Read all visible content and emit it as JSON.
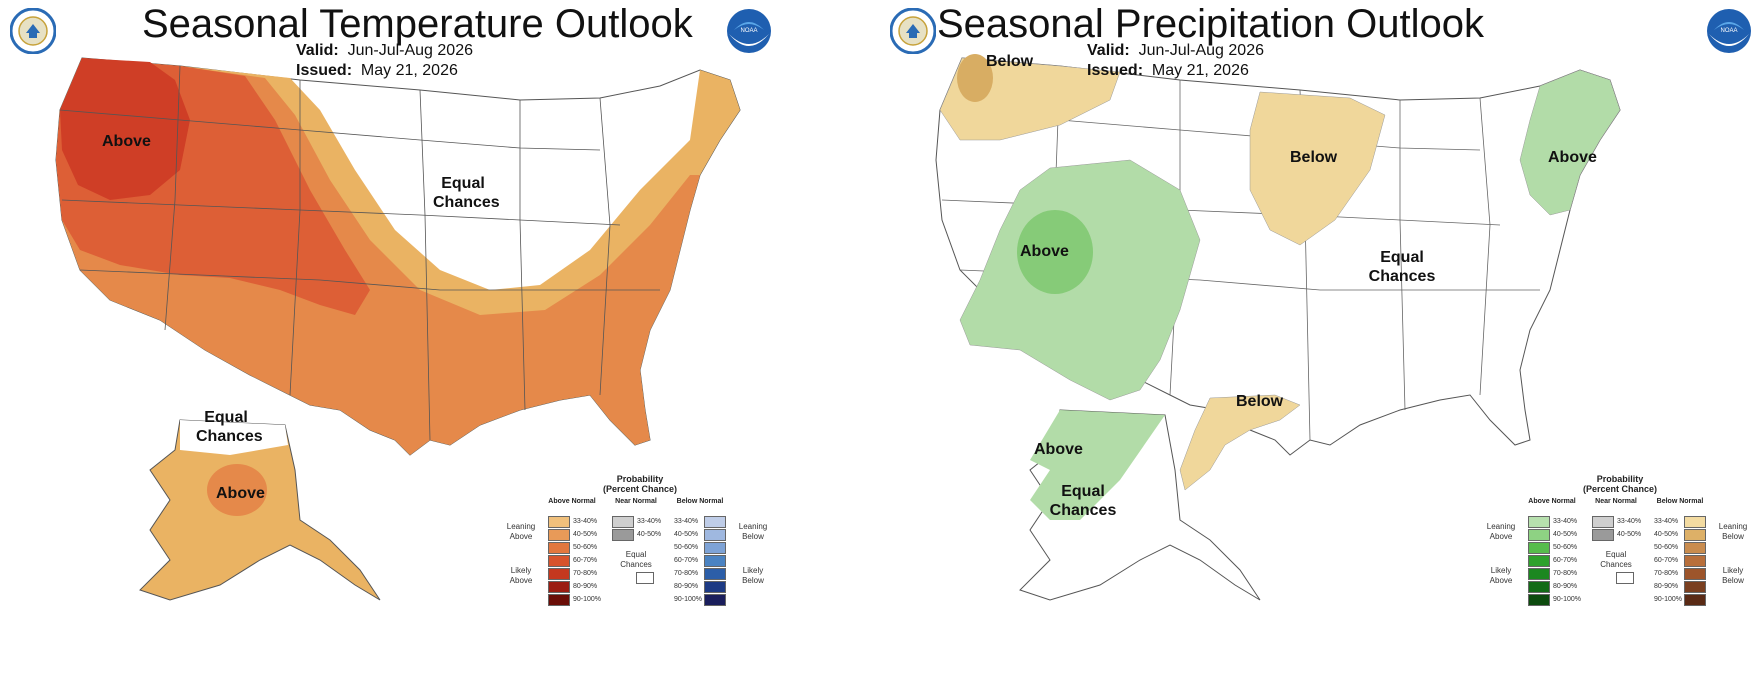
{
  "temperature": {
    "title": "Seasonal Temperature Outlook",
    "valid_label": "Valid:",
    "valid_value": "Jun-Jul-Aug 2026",
    "issued_label": "Issued:",
    "issued_value": "May 21, 2026",
    "regions": {
      "above_west": "Above",
      "equal_midwest_1": "Equal",
      "equal_midwest_2": "Chances",
      "equal_alaska_1": "Equal",
      "equal_alaska_2": "Chances",
      "above_alaska": "Above"
    },
    "colors": {
      "c33_40": "#eab363",
      "c40_50": "#e5894a",
      "c50_60": "#dd5f36",
      "c60_70": "#cf3e26",
      "c70_80": "#b0281c",
      "c80_90": "#8c1710",
      "c90_100": "#5e0b06"
    },
    "legend": {
      "title_1": "Probability",
      "title_2": "(Percent Chance)",
      "col_left": "Above Normal",
      "col_mid": "Near Normal",
      "col_right": "Below Normal",
      "side_left_1": "Leaning Above",
      "side_left_2": "Likely Above",
      "side_right_1": "Leaning Below",
      "side_right_2": "Likely Below",
      "equal": "Equal Chances",
      "left_colors": [
        "#f0c07c",
        "#e89a58",
        "#e2773e",
        "#d7532c",
        "#c5381f",
        "#9b1d12",
        "#6a0d07"
      ],
      "right_colors": [
        "#bfcde8",
        "#9fb8e0",
        "#7ea3d6",
        "#4b83c2",
        "#2c5ea8",
        "#1d3a84",
        "#1a1e5c"
      ]
    }
  },
  "precipitation": {
    "title": "Seasonal Precipitation Outlook",
    "valid_label": "Valid:",
    "valid_value": "Jun-Jul-Aug 2026",
    "issued_label": "Issued:",
    "issued_value": "May 21, 2026",
    "regions": {
      "below_nw": "Below",
      "below_midwest": "Below",
      "above_ne": "Above",
      "above_sw": "Above",
      "equal_center_1": "Equal",
      "equal_center_2": "Chances",
      "below_texas": "Below",
      "above_alaska": "Above",
      "equal_alaska_1": "Equal",
      "equal_alaska_2": "Chances"
    },
    "colors": {
      "green_33_40": "#b2dca8",
      "green_40_50": "#86cb78",
      "tan_33_40": "#f0d79b",
      "tan_40_50": "#d8ad63"
    },
    "legend": {
      "title_1": "Probability",
      "title_2": "(Percent Chance)",
      "col_left": "Above Normal",
      "col_mid": "Near Normal",
      "col_right": "Below Normal",
      "side_left_1": "Leaning Above",
      "side_left_2": "Likely Above",
      "side_right_1": "Leaning Below",
      "side_right_2": "Likely Below",
      "equal": "Equal Chances",
      "left_colors": [
        "#b7e0ae",
        "#8ed283",
        "#57bc4c",
        "#2ea12c",
        "#1c8720",
        "#136b17",
        "#0c4a0e"
      ],
      "right_colors": [
        "#f3dba1",
        "#ddb067",
        "#c98c4e",
        "#b86f3b",
        "#9d552b",
        "#7a3f20",
        "#5a2a15"
      ]
    }
  },
  "legend_ranges": {
    "left": [
      "33-40%",
      "40-50%",
      "50-60%",
      "60-70%",
      "70-80%",
      "80-90%",
      "90-100%"
    ],
    "mid": [
      "33-40%",
      "40-50%"
    ],
    "right": [
      "33-40%",
      "40-50%",
      "50-60%",
      "60-70%",
      "70-80%",
      "80-90%",
      "90-100%"
    ]
  },
  "near_normal_colors": [
    "#cfcfcf",
    "#9a9a9a"
  ],
  "logos": [
    "noaa-dept-commerce-seal",
    "noaa-logo"
  ]
}
